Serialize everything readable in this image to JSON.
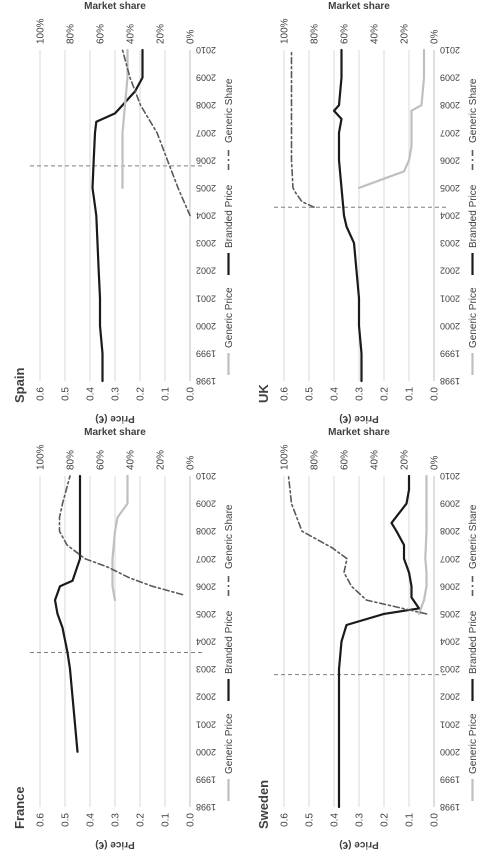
{
  "chart_data": [
    {
      "type": "line",
      "title": "France",
      "ylabel": "Price (€)",
      "y2label": "Market share",
      "ylim": [
        0,
        0.6
      ],
      "y2lim": [
        0,
        100
      ],
      "yticks": [
        "0.0",
        "0.1",
        "0.2",
        "0.3",
        "0.4",
        "0.5",
        "0.6"
      ],
      "y2ticks": [
        "0%",
        "20%",
        "40%",
        "60%",
        "80%",
        "100%"
      ],
      "xticks": [
        "1998",
        "1999",
        "2000",
        "2001",
        "2002",
        "2003",
        "2004",
        "2005",
        "2006",
        "2007",
        "2008",
        "2009",
        "2010"
      ],
      "entry_year": 2003.6,
      "legend": [
        "Generic Price",
        "Branded Price",
        "Generic Share"
      ],
      "series": [
        {
          "name": "Branded Price",
          "axis": "price",
          "x": [
            2000,
            2001,
            2002,
            2003,
            2003.6,
            2004.5,
            2005,
            2005.5,
            2006,
            2006.2,
            2007,
            2008,
            2009,
            2010
          ],
          "values": [
            0.45,
            0.46,
            0.47,
            0.48,
            0.49,
            0.51,
            0.53,
            0.54,
            0.52,
            0.47,
            0.44,
            0.44,
            0.44,
            0.44
          ]
        },
        {
          "name": "Generic Price",
          "axis": "price",
          "x": [
            2005.5,
            2006,
            2007,
            2008,
            2008.5,
            2009,
            2010
          ],
          "values": [
            0.3,
            0.31,
            0.31,
            0.3,
            0.29,
            0.25,
            0.25
          ]
        },
        {
          "name": "Generic Share",
          "axis": "share",
          "x": [
            2005.7,
            2006,
            2006.3,
            2006.7,
            2007,
            2007.5,
            2008,
            2008.5,
            2009,
            2010
          ],
          "values": [
            5,
            25,
            40,
            55,
            70,
            82,
            87,
            87,
            85,
            80
          ]
        }
      ]
    },
    {
      "type": "line",
      "title": "Spain",
      "ylabel": "Price (€)",
      "y2label": "Market share",
      "ylim": [
        0,
        0.6
      ],
      "y2lim": [
        0,
        100
      ],
      "yticks": [
        "0.0",
        "0.1",
        "0.2",
        "0.3",
        "0.4",
        "0.5",
        "0.6"
      ],
      "y2ticks": [
        "0%",
        "20%",
        "40%",
        "60%",
        "80%",
        "100%"
      ],
      "xticks": [
        "1998",
        "1999",
        "2000",
        "2001",
        "2002",
        "2003",
        "2004",
        "2005",
        "2006",
        "2007",
        "2008",
        "2009",
        "2010"
      ],
      "entry_year": 2005.8,
      "legend": [
        "Generic Price",
        "Branded Price",
        "Generic Share"
      ],
      "series": [
        {
          "name": "Branded Price",
          "axis": "price",
          "x": [
            1998,
            1999,
            2000,
            2001,
            2002,
            2003,
            2004,
            2005,
            2006,
            2007,
            2007.4,
            2007.7,
            2008,
            2008.5,
            2009,
            2010
          ],
          "values": [
            0.35,
            0.35,
            0.36,
            0.36,
            0.365,
            0.37,
            0.375,
            0.39,
            0.385,
            0.38,
            0.375,
            0.3,
            0.27,
            0.22,
            0.19,
            0.19
          ]
        },
        {
          "name": "Generic Price",
          "axis": "price",
          "x": [
            2005,
            2006,
            2007,
            2008,
            2009,
            2010
          ],
          "values": [
            0.27,
            0.27,
            0.27,
            0.26,
            0.25,
            0.25
          ]
        },
        {
          "name": "Generic Share",
          "axis": "share",
          "x": [
            2004,
            2005,
            2006,
            2007,
            2008,
            2009,
            2010
          ],
          "values": [
            0,
            8,
            15,
            22,
            33,
            40,
            45
          ]
        }
      ]
    },
    {
      "type": "line",
      "title": "Sweden",
      "ylabel": "Price (€)",
      "y2label": "Market share",
      "ylim": [
        0,
        0.6
      ],
      "y2lim": [
        0,
        100
      ],
      "yticks": [
        "0.0",
        "0.1",
        "0.2",
        "0.3",
        "0.4",
        "0.5",
        "0.6"
      ],
      "y2ticks": [
        "0%",
        "20%",
        "40%",
        "60%",
        "80%",
        "100%"
      ],
      "xticks": [
        "1998",
        "1999",
        "2000",
        "2001",
        "2002",
        "2003",
        "2004",
        "2005",
        "2006",
        "2007",
        "2008",
        "2009",
        "2010"
      ],
      "entry_year": 2002.8,
      "legend": [
        "Generic Price",
        "Branded Price",
        "Generic Share"
      ],
      "series": [
        {
          "name": "Branded Price",
          "axis": "price",
          "x": [
            1998,
            1999,
            2000,
            2001,
            2002,
            2003,
            2004,
            2004.6,
            2005,
            2005.2,
            2005.6,
            2006,
            2006.5,
            2007,
            2007.5,
            2008,
            2008.3,
            2009,
            2009.5,
            2010
          ],
          "values": [
            0.38,
            0.38,
            0.38,
            0.38,
            0.38,
            0.38,
            0.37,
            0.35,
            0.2,
            0.06,
            0.09,
            0.09,
            0.1,
            0.12,
            0.12,
            0.15,
            0.17,
            0.11,
            0.1,
            0.1
          ]
        },
        {
          "name": "Generic Price",
          "axis": "price",
          "x": [
            2005,
            2005.5,
            2006,
            2006.5,
            2007,
            2008,
            2009,
            2010
          ],
          "values": [
            0.06,
            0.04,
            0.03,
            0.03,
            0.035,
            0.03,
            0.03,
            0.03
          ]
        },
        {
          "name": "Generic Share",
          "axis": "share",
          "x": [
            2005,
            2005.5,
            2006,
            2006.5,
            2007,
            2007.4,
            2008,
            2009,
            2010
          ],
          "values": [
            5,
            45,
            55,
            60,
            58,
            68,
            88,
            95,
            97
          ]
        }
      ]
    },
    {
      "type": "line",
      "title": "UK",
      "ylabel": "Price (€)",
      "y2label": "Market share",
      "ylim": [
        0,
        0.6
      ],
      "y2lim": [
        0,
        100
      ],
      "yticks": [
        "0.0",
        "0.1",
        "0.2",
        "0.3",
        "0.4",
        "0.5",
        "0.6"
      ],
      "y2ticks": [
        "0%",
        "20%",
        "40%",
        "60%",
        "80%",
        "100%"
      ],
      "xticks": [
        "1998",
        "1999",
        "2000",
        "2001",
        "2002",
        "2003",
        "2004",
        "2005",
        "2006",
        "2007",
        "2008",
        "2009",
        "2010"
      ],
      "entry_year": 2004.3,
      "legend": [
        "Generic Price",
        "Branded Price",
        "Generic Share"
      ],
      "series": [
        {
          "name": "Branded Price",
          "axis": "price",
          "x": [
            1998,
            1999,
            2000,
            2001,
            2002,
            2003,
            2003.6,
            2004,
            2005,
            2006,
            2007,
            2007.5,
            2007.8,
            2008,
            2009,
            2010
          ],
          "values": [
            0.29,
            0.29,
            0.3,
            0.3,
            0.31,
            0.32,
            0.35,
            0.36,
            0.37,
            0.38,
            0.38,
            0.37,
            0.4,
            0.38,
            0.37,
            0.37
          ]
        },
        {
          "name": "Generic Price",
          "axis": "price",
          "x": [
            2005,
            2005.6,
            2006,
            2006.5,
            2007,
            2007.8,
            2008,
            2009,
            2010
          ],
          "values": [
            0.3,
            0.12,
            0.1,
            0.09,
            0.09,
            0.09,
            0.05,
            0.04,
            0.04
          ]
        },
        {
          "name": "Generic Share",
          "axis": "share",
          "x": [
            2004.3,
            2004.5,
            2004.8,
            2005,
            2006,
            2007,
            2008,
            2009,
            2010
          ],
          "values": [
            80,
            88,
            92,
            94,
            95,
            95,
            95,
            95,
            95
          ]
        }
      ]
    }
  ]
}
